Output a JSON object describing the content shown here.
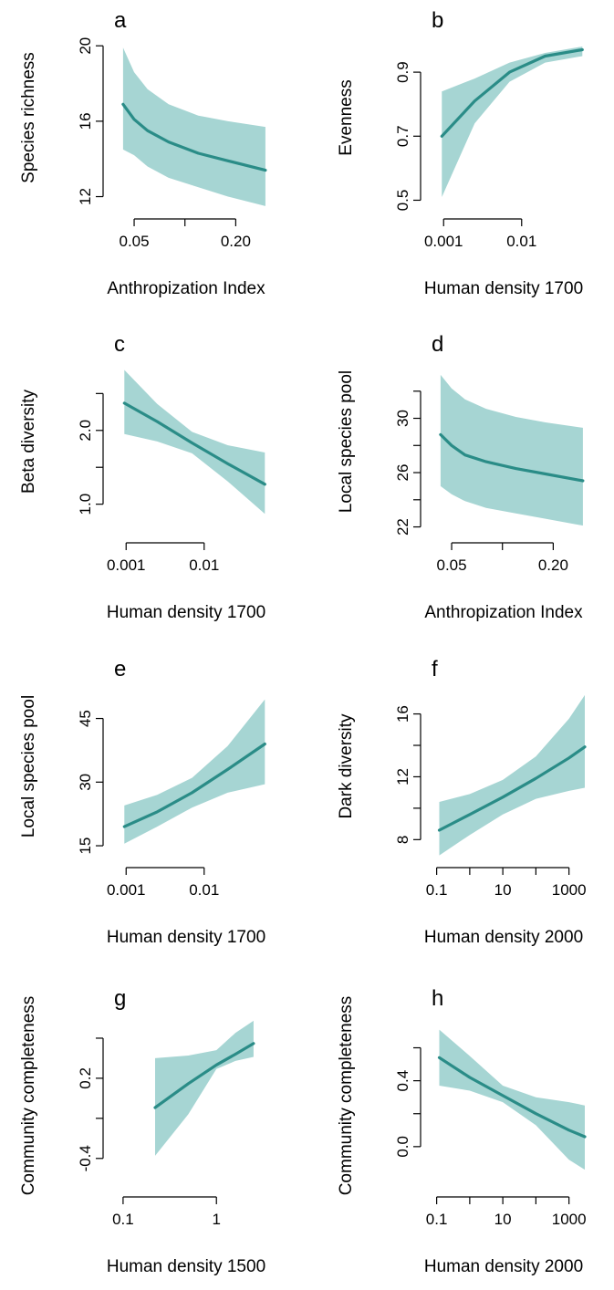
{
  "colors": {
    "ribbon": "#a6d5d3",
    "line": "#2a8c87",
    "axis": "#000000"
  },
  "chart_data": [
    {
      "type": "line",
      "panel": "a",
      "xlog": true,
      "xlabel": "Anthropization Index",
      "ylabel": "Species richness",
      "xlim": [
        0.038,
        0.34
      ],
      "ylim": [
        11.3,
        20.3
      ],
      "xticks": [
        {
          "v": 0.05,
          "label": "0.05"
        },
        {
          "v": 0.1,
          "label": ""
        },
        {
          "v": 0.2,
          "label": "0.20"
        }
      ],
      "yticks": [
        {
          "v": 12,
          "label": "12"
        },
        {
          "v": 16,
          "label": "16"
        },
        {
          "v": 20,
          "label": "20"
        }
      ],
      "series": [
        {
          "x": [
            0.043,
            0.05,
            0.06,
            0.08,
            0.12,
            0.18,
            0.3
          ],
          "y": [
            16.9,
            16.1,
            15.5,
            14.9,
            14.3,
            13.9,
            13.4
          ],
          "lower": [
            14.5,
            14.2,
            13.6,
            13.0,
            12.5,
            12.0,
            11.5
          ],
          "upper": [
            19.9,
            18.6,
            17.7,
            16.9,
            16.3,
            16.0,
            15.7
          ]
        }
      ]
    },
    {
      "type": "line",
      "panel": "b",
      "xlog": true,
      "xlabel": "Human density 1700",
      "ylabel": "Evenness",
      "xlim": [
        0.0007,
        0.08
      ],
      "ylim": [
        0.47,
        1.0
      ],
      "xticks": [
        {
          "v": 0.001,
          "label": "0.001"
        },
        {
          "v": 0.01,
          "label": "0.01"
        }
      ],
      "yticks": [
        {
          "v": 0.5,
          "label": "0.5"
        },
        {
          "v": 0.7,
          "label": "0.7"
        },
        {
          "v": 0.9,
          "label": "0.9"
        }
      ],
      "series": [
        {
          "x": [
            0.00095,
            0.0025,
            0.007,
            0.02,
            0.06
          ],
          "y": [
            0.7,
            0.81,
            0.9,
            0.95,
            0.97
          ],
          "lower": [
            0.51,
            0.74,
            0.87,
            0.93,
            0.95
          ],
          "upper": [
            0.84,
            0.88,
            0.93,
            0.96,
            0.98
          ]
        }
      ]
    },
    {
      "type": "line",
      "panel": "c",
      "xlog": true,
      "xlabel": "Human density 1700",
      "ylabel": "Beta diversity",
      "xlim": [
        0.0007,
        0.08
      ],
      "ylim": [
        0.6,
        2.9
      ],
      "xticks": [
        {
          "v": 0.001,
          "label": "0.001"
        },
        {
          "v": 0.01,
          "label": "0.01"
        }
      ],
      "yticks": [
        {
          "v": 1.0,
          "label": "1.0"
        },
        {
          "v": 1.5,
          "label": ""
        },
        {
          "v": 2.0,
          "label": "2.0"
        },
        {
          "v": 2.5,
          "label": ""
        }
      ],
      "series": [
        {
          "x": [
            0.00095,
            0.0025,
            0.007,
            0.02,
            0.06
          ],
          "y": [
            2.37,
            2.12,
            1.83,
            1.55,
            1.27
          ],
          "lower": [
            1.95,
            1.85,
            1.69,
            1.31,
            0.87
          ],
          "upper": [
            2.82,
            2.36,
            1.98,
            1.8,
            1.7
          ]
        }
      ]
    },
    {
      "type": "line",
      "panel": "d",
      "xlog": true,
      "xlabel": "Anthropization Index",
      "ylabel": "Local species pool",
      "xlim": [
        0.038,
        0.34
      ],
      "ylim": [
        21.5,
        34.0
      ],
      "xticks": [
        {
          "v": 0.05,
          "label": "0.05"
        },
        {
          "v": 0.1,
          "label": ""
        },
        {
          "v": 0.2,
          "label": "0.20"
        }
      ],
      "yticks": [
        {
          "v": 22,
          "label": "22"
        },
        {
          "v": 24,
          "label": ""
        },
        {
          "v": 26,
          "label": "26"
        },
        {
          "v": 28,
          "label": ""
        },
        {
          "v": 30,
          "label": "30"
        },
        {
          "v": 32,
          "label": ""
        }
      ],
      "series": [
        {
          "x": [
            0.043,
            0.05,
            0.06,
            0.08,
            0.12,
            0.18,
            0.3
          ],
          "y": [
            28.8,
            28.0,
            27.3,
            26.8,
            26.3,
            25.9,
            25.4
          ],
          "lower": [
            25.0,
            24.4,
            23.9,
            23.4,
            23.0,
            22.6,
            22.1
          ],
          "upper": [
            33.2,
            32.2,
            31.4,
            30.7,
            30.1,
            29.7,
            29.3
          ]
        }
      ]
    },
    {
      "type": "line",
      "panel": "e",
      "xlog": true,
      "xlabel": "Human density 1700",
      "ylabel": "Local species pool",
      "xlim": [
        0.0007,
        0.08
      ],
      "ylim": [
        12,
        52
      ],
      "xticks": [
        {
          "v": 0.001,
          "label": "0.001"
        },
        {
          "v": 0.01,
          "label": "0.01"
        }
      ],
      "yticks": [
        {
          "v": 15,
          "label": "15"
        },
        {
          "v": 30,
          "label": "30"
        },
        {
          "v": 45,
          "label": "45"
        }
      ],
      "series": [
        {
          "x": [
            0.00095,
            0.0025,
            0.007,
            0.02,
            0.06
          ],
          "y": [
            19.5,
            23.0,
            27.5,
            33.0,
            39.0
          ],
          "lower": [
            15.5,
            19.5,
            24.0,
            27.5,
            29.5
          ],
          "upper": [
            24.5,
            27.0,
            31.0,
            38.5,
            49.5
          ]
        }
      ]
    },
    {
      "type": "line",
      "panel": "f",
      "xlog": true,
      "xlabel": "Human density 2000",
      "ylabel": "Dark diversity",
      "xlim": [
        0.07,
        5000
      ],
      "ylim": [
        6.8,
        17.6
      ],
      "xticks": [
        {
          "v": 0.1,
          "label": "0.1"
        },
        {
          "v": 1,
          "label": ""
        },
        {
          "v": 10,
          "label": "10"
        },
        {
          "v": 100,
          "label": ""
        },
        {
          "v": 1000,
          "label": "1000"
        }
      ],
      "yticks": [
        {
          "v": 8,
          "label": "8"
        },
        {
          "v": 10,
          "label": ""
        },
        {
          "v": 12,
          "label": "12"
        },
        {
          "v": 14,
          "label": ""
        },
        {
          "v": 16,
          "label": "16"
        }
      ],
      "series": [
        {
          "x": [
            0.12,
            1,
            10,
            100,
            1000,
            3000
          ],
          "y": [
            8.6,
            9.6,
            10.7,
            11.9,
            13.2,
            13.9
          ],
          "lower": [
            7.0,
            8.3,
            9.6,
            10.6,
            11.1,
            11.3
          ],
          "upper": [
            10.4,
            10.9,
            11.8,
            13.3,
            15.7,
            17.2
          ]
        }
      ]
    },
    {
      "type": "line",
      "panel": "g",
      "xlog": true,
      "xlabel": "Human density 1500",
      "ylabel": "Community completeness",
      "xlim": [
        0.08,
        4.2
      ],
      "ylim": [
        -0.62,
        0.65
      ],
      "xticks": [
        {
          "v": 0.1,
          "label": "0.1"
        },
        {
          "v": 1,
          "label": "1"
        }
      ],
      "yticks": [
        {
          "v": -0.4,
          "label": "-0.4"
        },
        {
          "v": -0.1,
          "label": ""
        },
        {
          "v": 0.2,
          "label": "0.2"
        },
        {
          "v": 0.5,
          "label": ""
        }
      ],
      "series": [
        {
          "x": [
            0.22,
            0.5,
            1.0,
            1.6,
            2.5
          ],
          "y": [
            -0.02,
            0.16,
            0.3,
            0.38,
            0.46
          ],
          "lower": [
            -0.38,
            -0.07,
            0.27,
            0.33,
            0.36
          ],
          "upper": [
            0.35,
            0.37,
            0.41,
            0.54,
            0.63
          ]
        }
      ]
    },
    {
      "type": "line",
      "panel": "h",
      "xlog": true,
      "xlabel": "Human density 2000",
      "ylabel": "Community completeness",
      "xlim": [
        0.07,
        5000
      ],
      "ylim": [
        -0.25,
        0.78
      ],
      "xticks": [
        {
          "v": 0.1,
          "label": "0.1"
        },
        {
          "v": 1,
          "label": ""
        },
        {
          "v": 10,
          "label": "10"
        },
        {
          "v": 100,
          "label": ""
        },
        {
          "v": 1000,
          "label": "1000"
        }
      ],
      "yticks": [
        {
          "v": 0.0,
          "label": "0.0"
        },
        {
          "v": 0.2,
          "label": ""
        },
        {
          "v": 0.4,
          "label": "0.4"
        },
        {
          "v": 0.6,
          "label": ""
        }
      ],
      "series": [
        {
          "x": [
            0.12,
            1,
            10,
            100,
            1000,
            3000
          ],
          "y": [
            0.54,
            0.42,
            0.31,
            0.2,
            0.1,
            0.06
          ],
          "lower": [
            0.37,
            0.34,
            0.27,
            0.13,
            -0.08,
            -0.14
          ],
          "upper": [
            0.71,
            0.55,
            0.37,
            0.3,
            0.27,
            0.25
          ]
        }
      ]
    }
  ]
}
